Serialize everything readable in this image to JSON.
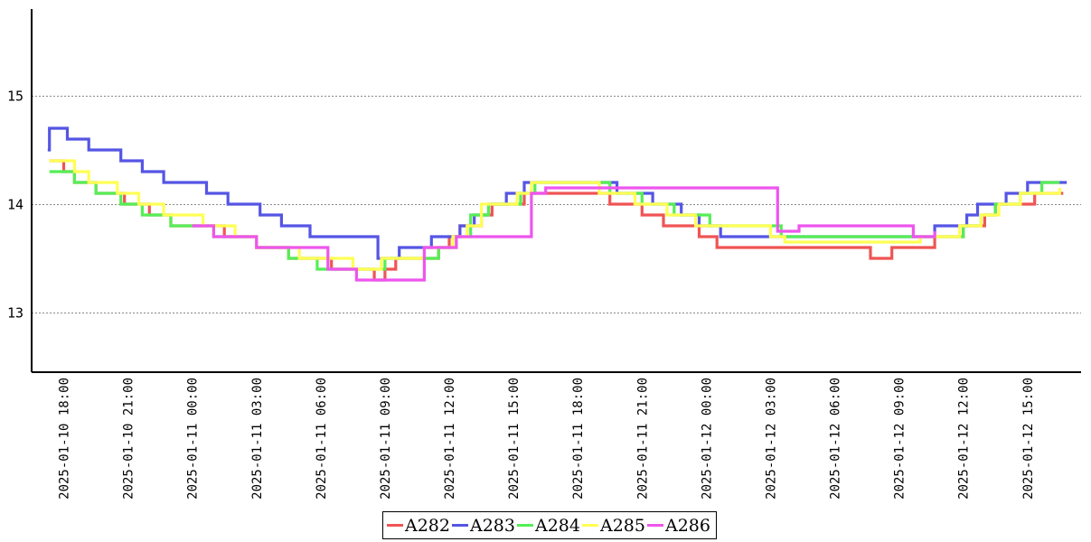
{
  "chart_data": {
    "type": "line",
    "title": "",
    "xlabel": "",
    "ylabel": "",
    "ylim": [
      12.45,
      15.8
    ],
    "yticks": [
      13,
      14,
      15
    ],
    "grid": "horizontal dotted",
    "legend": "bottom-center",
    "x_range": [
      "2025-01-10 16:30",
      "2025-01-12 17:30"
    ],
    "xticks": [
      "2025-01-10 18:00",
      "2025-01-10 21:00",
      "2025-01-11 00:00",
      "2025-01-11 03:00",
      "2025-01-11 06:00",
      "2025-01-11 09:00",
      "2025-01-11 12:00",
      "2025-01-11 15:00",
      "2025-01-11 18:00",
      "2025-01-11 21:00",
      "2025-01-12 00:00",
      "2025-01-12 03:00",
      "2025-01-12 06:00",
      "2025-01-12 09:00",
      "2025-01-12 12:00",
      "2025-01-12 15:00"
    ],
    "series": [
      {
        "name": "A282",
        "color": "#f05454",
        "data": [
          [
            "2025-01-10 17:20",
            14.4
          ],
          [
            "2025-01-10 18:00",
            14.3
          ],
          [
            "2025-01-10 18:30",
            14.2
          ],
          [
            "2025-01-10 19:30",
            14.1
          ],
          [
            "2025-01-10 20:50",
            14.0
          ],
          [
            "2025-01-10 22:00",
            13.9
          ],
          [
            "2025-01-10 23:00",
            13.8
          ],
          [
            "2025-01-11 01:30",
            13.7
          ],
          [
            "2025-01-11 03:00",
            13.6
          ],
          [
            "2025-01-11 04:30",
            13.5
          ],
          [
            "2025-01-11 06:30",
            13.4
          ],
          [
            "2025-01-11 08:30",
            13.3
          ],
          [
            "2025-01-11 09:00",
            13.4
          ],
          [
            "2025-01-11 09:30",
            13.5
          ],
          [
            "2025-01-11 11:30",
            13.6
          ],
          [
            "2025-01-11 12:00",
            13.7
          ],
          [
            "2025-01-11 12:30",
            13.8
          ],
          [
            "2025-01-11 13:30",
            13.9
          ],
          [
            "2025-01-11 14:00",
            14.0
          ],
          [
            "2025-01-11 15:30",
            14.1
          ],
          [
            "2025-01-11 19:30",
            14.0
          ],
          [
            "2025-01-11 21:00",
            13.9
          ],
          [
            "2025-01-11 22:00",
            13.8
          ],
          [
            "2025-01-11 23:40",
            13.7
          ],
          [
            "2025-01-12 00:30",
            13.6
          ],
          [
            "2025-01-12 07:40",
            13.5
          ],
          [
            "2025-01-12 08:40",
            13.6
          ],
          [
            "2025-01-12 10:40",
            13.7
          ],
          [
            "2025-01-12 12:00",
            13.8
          ],
          [
            "2025-01-12 13:00",
            13.9
          ],
          [
            "2025-01-12 13:30",
            14.0
          ],
          [
            "2025-01-12 15:20",
            14.1
          ],
          [
            "2025-01-12 16:40",
            14.1
          ]
        ]
      },
      {
        "name": "A283",
        "color": "#5555e5",
        "data": [
          [
            "2025-01-10 17:15",
            14.5
          ],
          [
            "2025-01-10 17:20",
            14.7
          ],
          [
            "2025-01-10 18:10",
            14.6
          ],
          [
            "2025-01-10 19:10",
            14.5
          ],
          [
            "2025-01-10 20:40",
            14.4
          ],
          [
            "2025-01-10 21:40",
            14.3
          ],
          [
            "2025-01-10 22:40",
            14.2
          ],
          [
            "2025-01-11 00:40",
            14.1
          ],
          [
            "2025-01-11 01:40",
            14.0
          ],
          [
            "2025-01-11 03:10",
            13.9
          ],
          [
            "2025-01-11 04:10",
            13.8
          ],
          [
            "2025-01-11 05:30",
            13.7
          ],
          [
            "2025-01-11 08:40",
            13.5
          ],
          [
            "2025-01-11 09:40",
            13.6
          ],
          [
            "2025-01-11 11:10",
            13.7
          ],
          [
            "2025-01-11 12:30",
            13.8
          ],
          [
            "2025-01-11 13:10",
            13.9
          ],
          [
            "2025-01-11 13:50",
            14.0
          ],
          [
            "2025-01-11 14:40",
            14.1
          ],
          [
            "2025-01-11 15:30",
            14.2
          ],
          [
            "2025-01-11 19:50",
            14.1
          ],
          [
            "2025-01-11 21:30",
            14.0
          ],
          [
            "2025-01-11 22:50",
            13.9
          ],
          [
            "2025-01-11 23:40",
            13.8
          ],
          [
            "2025-01-12 00:40",
            13.7
          ],
          [
            "2025-01-12 10:40",
            13.8
          ],
          [
            "2025-01-12 12:10",
            13.9
          ],
          [
            "2025-01-12 12:40",
            14.0
          ],
          [
            "2025-01-12 14:00",
            14.1
          ],
          [
            "2025-01-12 15:00",
            14.2
          ],
          [
            "2025-01-12 16:50",
            14.2
          ]
        ]
      },
      {
        "name": "A284",
        "color": "#55ee55",
        "data": [
          [
            "2025-01-10 17:20",
            14.3
          ],
          [
            "2025-01-10 18:30",
            14.2
          ],
          [
            "2025-01-10 19:30",
            14.1
          ],
          [
            "2025-01-10 20:40",
            14.0
          ],
          [
            "2025-01-10 21:40",
            13.9
          ],
          [
            "2025-01-10 23:00",
            13.8
          ],
          [
            "2025-01-11 01:00",
            13.7
          ],
          [
            "2025-01-11 03:00",
            13.6
          ],
          [
            "2025-01-11 04:30",
            13.5
          ],
          [
            "2025-01-11 05:50",
            13.4
          ],
          [
            "2025-01-11 07:40",
            13.4
          ],
          [
            "2025-01-11 09:00",
            13.5
          ],
          [
            "2025-01-11 11:30",
            13.6
          ],
          [
            "2025-01-11 12:20",
            13.7
          ],
          [
            "2025-01-11 13:00",
            13.9
          ],
          [
            "2025-01-11 13:50",
            14.0
          ],
          [
            "2025-01-11 15:20",
            14.1
          ],
          [
            "2025-01-11 16:00",
            14.2
          ],
          [
            "2025-01-11 19:30",
            14.1
          ],
          [
            "2025-01-11 21:00",
            14.0
          ],
          [
            "2025-01-11 22:30",
            13.9
          ],
          [
            "2025-01-12 00:10",
            13.8
          ],
          [
            "2025-01-12 02:50",
            13.8
          ],
          [
            "2025-01-12 03:30",
            13.7
          ],
          [
            "2025-01-12 10:40",
            13.7
          ],
          [
            "2025-01-12 12:00",
            13.8
          ],
          [
            "2025-01-12 12:50",
            13.9
          ],
          [
            "2025-01-12 13:30",
            14.0
          ],
          [
            "2025-01-12 14:40",
            14.1
          ],
          [
            "2025-01-12 15:40",
            14.2
          ],
          [
            "2025-01-12 16:30",
            14.2
          ]
        ]
      },
      {
        "name": "A285",
        "color": "#ffff55",
        "data": [
          [
            "2025-01-10 17:20",
            14.4
          ],
          [
            "2025-01-10 18:30",
            14.3
          ],
          [
            "2025-01-10 19:10",
            14.2
          ],
          [
            "2025-01-10 20:30",
            14.1
          ],
          [
            "2025-01-10 21:30",
            14.0
          ],
          [
            "2025-01-10 22:40",
            13.9
          ],
          [
            "2025-01-11 00:30",
            13.8
          ],
          [
            "2025-01-11 02:00",
            13.7
          ],
          [
            "2025-01-11 03:00",
            13.6
          ],
          [
            "2025-01-11 05:00",
            13.5
          ],
          [
            "2025-01-11 07:30",
            13.4
          ],
          [
            "2025-01-11 08:50",
            13.5
          ],
          [
            "2025-01-11 10:50",
            13.6
          ],
          [
            "2025-01-11 12:10",
            13.7
          ],
          [
            "2025-01-11 12:50",
            13.8
          ],
          [
            "2025-01-11 13:30",
            14.0
          ],
          [
            "2025-01-11 15:10",
            14.1
          ],
          [
            "2025-01-11 15:50",
            14.2
          ],
          [
            "2025-01-11 19:00",
            14.1
          ],
          [
            "2025-01-11 20:40",
            14.0
          ],
          [
            "2025-01-11 22:10",
            13.9
          ],
          [
            "2025-01-11 23:30",
            13.8
          ],
          [
            "2025-01-12 03:00",
            13.7
          ],
          [
            "2025-01-12 03:40",
            13.65
          ],
          [
            "2025-01-12 06:00",
            13.65
          ],
          [
            "2025-01-12 10:00",
            13.7
          ],
          [
            "2025-01-12 11:50",
            13.8
          ],
          [
            "2025-01-12 12:50",
            13.9
          ],
          [
            "2025-01-12 13:40",
            14.0
          ],
          [
            "2025-01-12 14:40",
            14.1
          ],
          [
            "2025-01-12 16:30",
            14.15
          ]
        ]
      },
      {
        "name": "A286",
        "color": "#ee55ee",
        "data": [
          [
            "2025-01-11 00:00",
            13.8
          ],
          [
            "2025-01-11 01:00",
            13.7
          ],
          [
            "2025-01-11 03:00",
            13.6
          ],
          [
            "2025-01-11 06:20",
            13.4
          ],
          [
            "2025-01-11 07:40",
            13.3
          ],
          [
            "2025-01-11 10:50",
            13.6
          ],
          [
            "2025-01-11 12:20",
            13.7
          ],
          [
            "2025-01-11 15:50",
            14.1
          ],
          [
            "2025-01-11 16:30",
            14.15
          ],
          [
            "2025-01-12 03:20",
            13.75
          ],
          [
            "2025-01-12 04:20",
            13.8
          ],
          [
            "2025-01-12 09:40",
            13.7
          ],
          [
            "2025-01-12 10:40",
            13.75
          ]
        ]
      }
    ]
  }
}
